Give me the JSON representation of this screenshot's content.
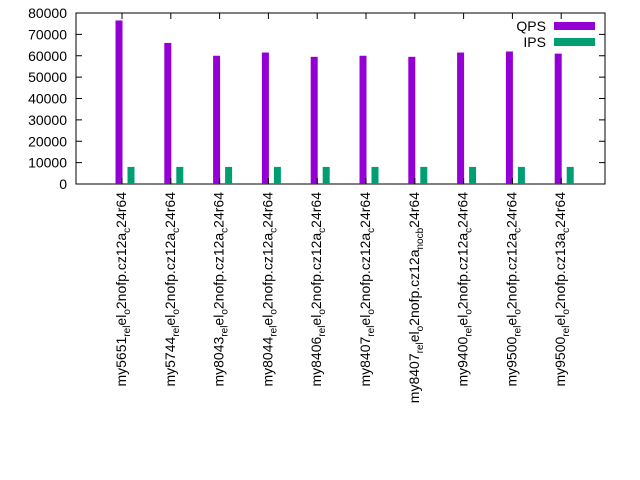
{
  "chart_data": {
    "type": "bar",
    "title": "",
    "xlabel": "",
    "ylabel": "",
    "ylim": [
      0,
      80000
    ],
    "yticks": [
      0,
      10000,
      20000,
      30000,
      40000,
      50000,
      60000,
      70000,
      80000
    ],
    "grid": false,
    "legend_position": "top-right",
    "categories": [
      {
        "main": "my5651",
        "s1": "rel",
        "m1": "el",
        "s2": "o",
        "m2": "2nofp.cz12a",
        "s3": "c",
        "m3": "24r64"
      },
      {
        "main": "my5744",
        "s1": "rel",
        "m1": "el",
        "s2": "o",
        "m2": "2nofp.cz12a",
        "s3": "c",
        "m3": "24r64"
      },
      {
        "main": "my8043",
        "s1": "rel",
        "m1": "el",
        "s2": "o",
        "m2": "2nofp.cz12a",
        "s3": "c",
        "m3": "24r64"
      },
      {
        "main": "my8044",
        "s1": "rel",
        "m1": "el",
        "s2": "o",
        "m2": "2nofp.cz12a",
        "s3": "c",
        "m3": "24r64"
      },
      {
        "main": "my8406",
        "s1": "rel",
        "m1": "el",
        "s2": "o",
        "m2": "2nofp.cz12a",
        "s3": "c",
        "m3": "24r64"
      },
      {
        "main": "my8407",
        "s1": "rel",
        "m1": "el",
        "s2": "o",
        "m2": "2nofp.cz12a",
        "s3": "c",
        "m3": "24r64"
      },
      {
        "main": "my8407",
        "s1": "rel",
        "m1": "el",
        "s2": "o",
        "m2": "2nofp.cz12a",
        "s3": "nocb",
        "m3": "24r64"
      },
      {
        "main": "my9400",
        "s1": "rel",
        "m1": "el",
        "s2": "o",
        "m2": "2nofp.cz12a",
        "s3": "c",
        "m3": "24r64"
      },
      {
        "main": "my9500",
        "s1": "rel",
        "m1": "el",
        "s2": "o",
        "m2": "2nofp.cz12a",
        "s3": "c",
        "m3": "24r64"
      },
      {
        "main": "my9500",
        "s1": "rel",
        "m1": "el",
        "s2": "o",
        "m2": "2nofp.cz13a",
        "s3": "c",
        "m3": "24r64"
      }
    ],
    "series": [
      {
        "name": "QPS",
        "color": "#9400d3",
        "values": [
          76500,
          66000,
          60000,
          61500,
          59500,
          60000,
          59500,
          61500,
          62000,
          61000
        ]
      },
      {
        "name": "IPS",
        "color": "#009e73",
        "values": [
          8000,
          8000,
          8000,
          8000,
          8000,
          8000,
          8000,
          8000,
          8000,
          8000
        ]
      }
    ]
  }
}
